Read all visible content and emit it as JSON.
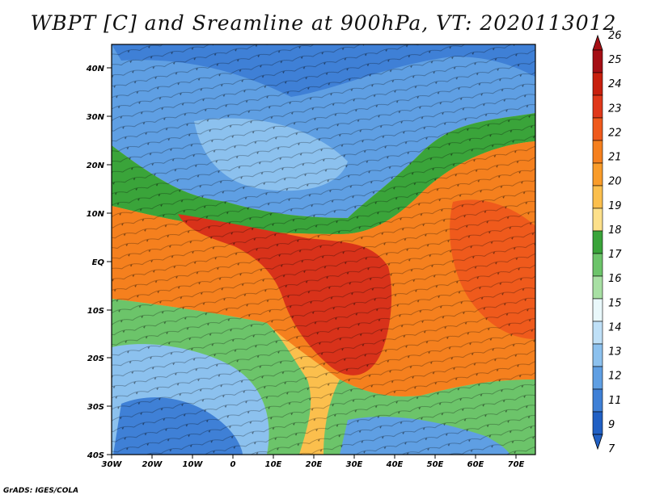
{
  "title": "WBPT [C] and Sreamline at 900hPa, VT: 2020113012",
  "credit": "GrADS: IGES/COLA",
  "lat_labels": [
    "40N",
    "30N",
    "20N",
    "10N",
    "EQ",
    "10S",
    "20S",
    "30S",
    "40S"
  ],
  "lon_labels": [
    "30W",
    "20W",
    "10W",
    "0",
    "10E",
    "20E",
    "30E",
    "40E",
    "50E",
    "60E",
    "70E"
  ],
  "colorbar": {
    "levels": [
      "26",
      "25",
      "24",
      "23",
      "22",
      "21",
      "20",
      "19",
      "18",
      "17",
      "16",
      "15",
      "14",
      "13",
      "12",
      "11",
      "9",
      "7"
    ],
    "colors": [
      "#a50f15",
      "#c8200e",
      "#e0381a",
      "#ef5a1c",
      "#f5801e",
      "#f99c2a",
      "#fbbf4d",
      "#fde08a",
      "#3aa43a",
      "#6cc46a",
      "#a8e0a4",
      "#e9f8fb",
      "#bfe0f7",
      "#8cc1ee",
      "#5f9fe3",
      "#3f80d6",
      "#2160c4"
    ]
  },
  "colors": {
    "cold": "#3f7fd6",
    "cool": "#8cc1ee",
    "green": "#5cb85c",
    "warm": "#f5801e",
    "hot": "#d8321a"
  }
}
